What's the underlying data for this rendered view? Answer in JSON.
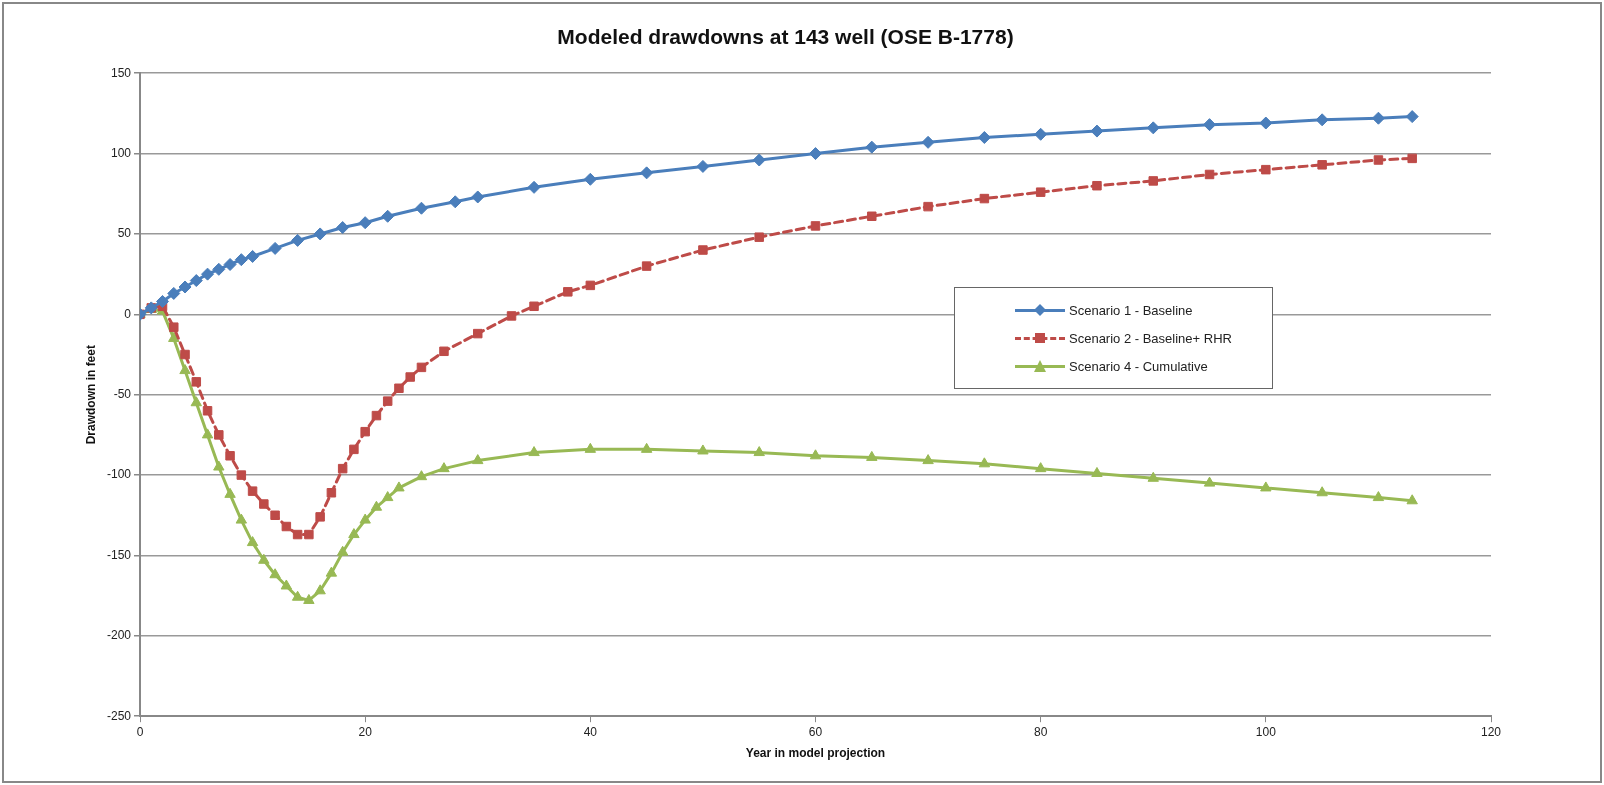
{
  "chart_data": {
    "type": "line",
    "title": "Modeled drawdowns at 143 well (OSE B-1778)",
    "xlabel": "Year in model projection",
    "ylabel": "Drawdown in feet",
    "xlim": [
      0,
      120
    ],
    "xticks": [
      0,
      20,
      40,
      60,
      80,
      100,
      120
    ],
    "ylim": [
      -250,
      150
    ],
    "yticks": [
      -250,
      -200,
      -150,
      -100,
      -50,
      0,
      50,
      100,
      150
    ],
    "grid": "y",
    "legend": "right",
    "series": [
      {
        "name": "Scenario 1 - Baseline",
        "color": "#4a7ebb",
        "marker": "diamond",
        "line_style": "solid",
        "x": [
          0,
          1,
          2,
          3,
          4,
          5,
          6,
          7,
          8,
          9,
          10,
          12,
          14,
          16,
          18,
          20,
          22,
          25,
          28,
          30,
          35,
          40,
          45,
          50,
          55,
          60,
          65,
          70,
          75,
          80,
          85,
          90,
          95,
          100,
          105,
          110,
          113
        ],
        "values": [
          0,
          4,
          8,
          13,
          17,
          21,
          25,
          28,
          31,
          34,
          36,
          41,
          46,
          50,
          54,
          57,
          61,
          66,
          70,
          73,
          79,
          84,
          88,
          92,
          96,
          100,
          104,
          107,
          110,
          112,
          114,
          116,
          118,
          119,
          121,
          122,
          123
        ]
      },
      {
        "name": "Scenario 2 - Baseline+ RHR",
        "color": "#be4b48",
        "marker": "square",
        "line_style": "dashed",
        "x": [
          0,
          1,
          2,
          3,
          4,
          5,
          6,
          7,
          8,
          9,
          10,
          11,
          12,
          13,
          14,
          15,
          16,
          17,
          18,
          19,
          20,
          21,
          22,
          23,
          24,
          25,
          27,
          30,
          33,
          35,
          38,
          40,
          45,
          50,
          55,
          60,
          65,
          70,
          75,
          80,
          85,
          90,
          95,
          100,
          105,
          110,
          113
        ],
        "values": [
          0,
          4,
          5,
          -8,
          -25,
          -42,
          -60,
          -75,
          -88,
          -100,
          -110,
          -118,
          -125,
          -132,
          -137,
          -137,
          -126,
          -111,
          -96,
          -84,
          -73,
          -63,
          -54,
          -46,
          -39,
          -33,
          -23,
          -12,
          -1,
          5,
          14,
          18,
          30,
          40,
          48,
          55,
          61,
          67,
          72,
          76,
          80,
          83,
          87,
          90,
          93,
          96,
          97
        ]
      },
      {
        "name": "Scenario 4 - Cumulative",
        "color": "#98b954",
        "marker": "triangle",
        "line_style": "solid",
        "x": [
          0,
          1,
          2,
          3,
          4,
          5,
          6,
          7,
          8,
          9,
          10,
          11,
          12,
          13,
          14,
          15,
          16,
          17,
          18,
          19,
          20,
          21,
          22,
          23,
          25,
          27,
          30,
          35,
          40,
          45,
          50,
          55,
          60,
          65,
          70,
          75,
          80,
          85,
          90,
          95,
          100,
          105,
          110,
          113
        ],
        "values": [
          0,
          3,
          2,
          -15,
          -35,
          -55,
          -75,
          -95,
          -112,
          -128,
          -142,
          -153,
          -162,
          -169,
          -176,
          -178,
          -172,
          -161,
          -148,
          -137,
          -128,
          -120,
          -114,
          -108,
          -101,
          -96,
          -91,
          -86,
          -84,
          -84,
          -85,
          -86,
          -88,
          -89,
          -91,
          -93,
          -96,
          -99,
          -102,
          -105,
          -108,
          -111,
          -114,
          -116
        ]
      }
    ]
  }
}
